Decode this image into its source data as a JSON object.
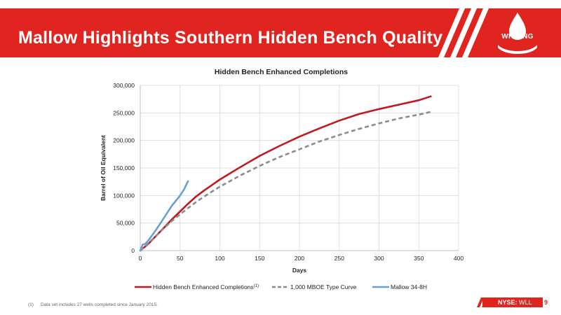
{
  "slide": {
    "title": "Mallow Highlights Southern Hidden Bench Quality",
    "logo_text": "WHITING",
    "ticker_prefix": "NYSE:",
    "ticker_symbol": "WLL",
    "page_number": "9",
    "footnote_mark": "(1)",
    "footnote_text": "Data set includes 27 wells completed since January 2015.",
    "brand_color": "#e0241f"
  },
  "chart_data": {
    "type": "line",
    "title": "Hidden Bench Enhanced Completions",
    "xlabel": "Days",
    "ylabel": "Barrel of Oil Equivalent",
    "xlim": [
      0,
      400
    ],
    "ylim": [
      0,
      300000
    ],
    "x_ticks": [
      "0",
      "50",
      "100",
      "150",
      "200",
      "250",
      "300",
      "350",
      "400"
    ],
    "y_ticks": [
      "0",
      "50,000",
      "100,000",
      "150,000",
      "200,000",
      "250,000",
      "300,000"
    ],
    "grid": true,
    "legend_position": "bottom",
    "series": [
      {
        "name": "Hidden Bench Enhanced Completions",
        "legend_superscript": "(1)",
        "color": "#c0191f",
        "dash": "solid",
        "points": [
          [
            0,
            0
          ],
          [
            10,
            12000
          ],
          [
            20,
            27000
          ],
          [
            30,
            42000
          ],
          [
            40,
            57000
          ],
          [
            50,
            71000
          ],
          [
            60,
            85000
          ],
          [
            70,
            98000
          ],
          [
            80,
            109000
          ],
          [
            90,
            119000
          ],
          [
            100,
            129000
          ],
          [
            125,
            151000
          ],
          [
            150,
            172000
          ],
          [
            175,
            190000
          ],
          [
            200,
            207000
          ],
          [
            225,
            222000
          ],
          [
            250,
            236000
          ],
          [
            275,
            248000
          ],
          [
            300,
            257000
          ],
          [
            325,
            265000
          ],
          [
            350,
            273000
          ],
          [
            365,
            280000
          ]
        ]
      },
      {
        "name": "1,000 MBOE Type Curve",
        "color": "#8c8c8c",
        "dash": "dashed",
        "points": [
          [
            0,
            0
          ],
          [
            10,
            13000
          ],
          [
            20,
            27000
          ],
          [
            30,
            41000
          ],
          [
            40,
            54000
          ],
          [
            50,
            66000
          ],
          [
            60,
            77000
          ],
          [
            70,
            88000
          ],
          [
            80,
            98000
          ],
          [
            90,
            107000
          ],
          [
            100,
            116000
          ],
          [
            125,
            136000
          ],
          [
            150,
            154000
          ],
          [
            175,
            170000
          ],
          [
            200,
            184000
          ],
          [
            225,
            198000
          ],
          [
            250,
            210000
          ],
          [
            275,
            221000
          ],
          [
            300,
            231000
          ],
          [
            325,
            240000
          ],
          [
            350,
            247000
          ],
          [
            365,
            252000
          ]
        ]
      },
      {
        "name": "Mallow 34-8H",
        "color": "#6a9fd4",
        "dash": "solid",
        "points": [
          [
            0,
            0
          ],
          [
            3,
            11000
          ],
          [
            6,
            12000
          ],
          [
            10,
            18000
          ],
          [
            15,
            28000
          ],
          [
            20,
            38000
          ],
          [
            25,
            49000
          ],
          [
            30,
            60000
          ],
          [
            35,
            71000
          ],
          [
            40,
            82000
          ],
          [
            45,
            91000
          ],
          [
            50,
            100000
          ],
          [
            55,
            111000
          ],
          [
            60,
            126000
          ]
        ]
      }
    ]
  }
}
